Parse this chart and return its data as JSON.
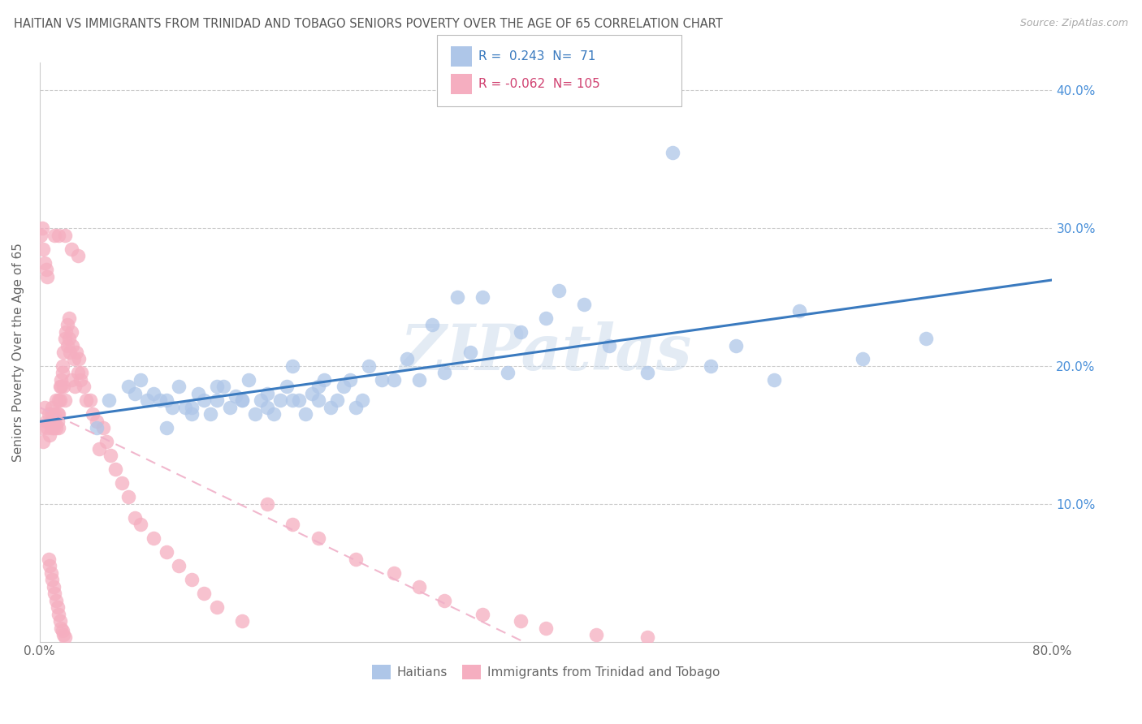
{
  "title": "HAITIAN VS IMMIGRANTS FROM TRINIDAD AND TOBAGO SENIORS POVERTY OVER THE AGE OF 65 CORRELATION CHART",
  "source": "Source: ZipAtlas.com",
  "ylabel": "Seniors Poverty Over the Age of 65",
  "xlim": [
    0.0,
    0.8
  ],
  "ylim": [
    0.0,
    0.42
  ],
  "xtick_positions": [
    0.0,
    0.1,
    0.2,
    0.3,
    0.4,
    0.5,
    0.6,
    0.7,
    0.8
  ],
  "xticklabels": [
    "0.0%",
    "",
    "",
    "",
    "",
    "",
    "",
    "",
    "80.0%"
  ],
  "ytick_positions": [
    0.0,
    0.1,
    0.2,
    0.3,
    0.4
  ],
  "yticklabels_right": [
    "",
    "10.0%",
    "20.0%",
    "30.0%",
    "40.0%"
  ],
  "haitian_R": 0.243,
  "haitian_N": 71,
  "trinidad_R": -0.062,
  "trinidad_N": 105,
  "haitian_color": "#aec6e8",
  "trinidad_color": "#f5aec0",
  "haitian_line_color": "#3a7abf",
  "trinidad_line_color": "#f0b0c8",
  "background_color": "#ffffff",
  "watermark": "ZIPatlas",
  "haitian_x": [
    0.045,
    0.055,
    0.07,
    0.075,
    0.08,
    0.085,
    0.09,
    0.095,
    0.1,
    0.105,
    0.11,
    0.115,
    0.12,
    0.125,
    0.13,
    0.135,
    0.14,
    0.145,
    0.15,
    0.155,
    0.16,
    0.165,
    0.17,
    0.175,
    0.18,
    0.185,
    0.19,
    0.195,
    0.2,
    0.205,
    0.21,
    0.215,
    0.22,
    0.225,
    0.23,
    0.235,
    0.24,
    0.245,
    0.25,
    0.255,
    0.26,
    0.27,
    0.28,
    0.29,
    0.3,
    0.31,
    0.32,
    0.33,
    0.34,
    0.35,
    0.37,
    0.38,
    0.4,
    0.41,
    0.43,
    0.45,
    0.48,
    0.5,
    0.53,
    0.55,
    0.58,
    0.6,
    0.65,
    0.7,
    0.1,
    0.12,
    0.14,
    0.16,
    0.18,
    0.2,
    0.22
  ],
  "haitian_y": [
    0.155,
    0.175,
    0.185,
    0.18,
    0.19,
    0.175,
    0.18,
    0.175,
    0.175,
    0.17,
    0.185,
    0.17,
    0.165,
    0.18,
    0.175,
    0.165,
    0.175,
    0.185,
    0.17,
    0.178,
    0.175,
    0.19,
    0.165,
    0.175,
    0.18,
    0.165,
    0.175,
    0.185,
    0.175,
    0.175,
    0.165,
    0.18,
    0.175,
    0.19,
    0.17,
    0.175,
    0.185,
    0.19,
    0.17,
    0.175,
    0.2,
    0.19,
    0.19,
    0.205,
    0.19,
    0.23,
    0.195,
    0.25,
    0.21,
    0.25,
    0.195,
    0.225,
    0.235,
    0.255,
    0.245,
    0.215,
    0.195,
    0.355,
    0.2,
    0.215,
    0.19,
    0.24,
    0.205,
    0.22,
    0.155,
    0.17,
    0.185,
    0.175,
    0.17,
    0.2,
    0.185
  ],
  "trinidad_x": [
    0.002,
    0.003,
    0.004,
    0.005,
    0.006,
    0.007,
    0.008,
    0.009,
    0.01,
    0.01,
    0.01,
    0.011,
    0.012,
    0.012,
    0.013,
    0.013,
    0.014,
    0.014,
    0.015,
    0.015,
    0.015,
    0.016,
    0.016,
    0.017,
    0.017,
    0.018,
    0.018,
    0.019,
    0.019,
    0.02,
    0.02,
    0.021,
    0.022,
    0.022,
    0.023,
    0.023,
    0.024,
    0.025,
    0.025,
    0.026,
    0.027,
    0.028,
    0.029,
    0.03,
    0.031,
    0.032,
    0.033,
    0.035,
    0.037,
    0.04,
    0.042,
    0.045,
    0.047,
    0.05,
    0.053,
    0.056,
    0.06,
    0.065,
    0.07,
    0.075,
    0.08,
    0.09,
    0.1,
    0.11,
    0.12,
    0.13,
    0.14,
    0.16,
    0.18,
    0.2,
    0.22,
    0.25,
    0.28,
    0.3,
    0.32,
    0.35,
    0.38,
    0.4,
    0.44,
    0.48,
    0.001,
    0.002,
    0.003,
    0.004,
    0.005,
    0.006,
    0.007,
    0.008,
    0.009,
    0.01,
    0.011,
    0.012,
    0.013,
    0.014,
    0.015,
    0.016,
    0.017,
    0.018,
    0.019,
    0.02,
    0.012,
    0.015,
    0.02,
    0.025,
    0.03
  ],
  "trinidad_y": [
    0.155,
    0.145,
    0.17,
    0.16,
    0.155,
    0.165,
    0.15,
    0.16,
    0.155,
    0.17,
    0.165,
    0.155,
    0.16,
    0.165,
    0.155,
    0.175,
    0.16,
    0.165,
    0.155,
    0.175,
    0.165,
    0.185,
    0.175,
    0.19,
    0.185,
    0.2,
    0.195,
    0.21,
    0.185,
    0.22,
    0.175,
    0.225,
    0.23,
    0.215,
    0.235,
    0.22,
    0.21,
    0.225,
    0.19,
    0.215,
    0.205,
    0.185,
    0.21,
    0.195,
    0.205,
    0.19,
    0.195,
    0.185,
    0.175,
    0.175,
    0.165,
    0.16,
    0.14,
    0.155,
    0.145,
    0.135,
    0.125,
    0.115,
    0.105,
    0.09,
    0.085,
    0.075,
    0.065,
    0.055,
    0.045,
    0.035,
    0.025,
    0.015,
    0.1,
    0.085,
    0.075,
    0.06,
    0.05,
    0.04,
    0.03,
    0.02,
    0.015,
    0.01,
    0.005,
    0.003,
    0.295,
    0.3,
    0.285,
    0.275,
    0.27,
    0.265,
    0.06,
    0.055,
    0.05,
    0.045,
    0.04,
    0.035,
    0.03,
    0.025,
    0.02,
    0.015,
    0.01,
    0.008,
    0.005,
    0.003,
    0.295,
    0.295,
    0.295,
    0.285,
    0.28
  ]
}
